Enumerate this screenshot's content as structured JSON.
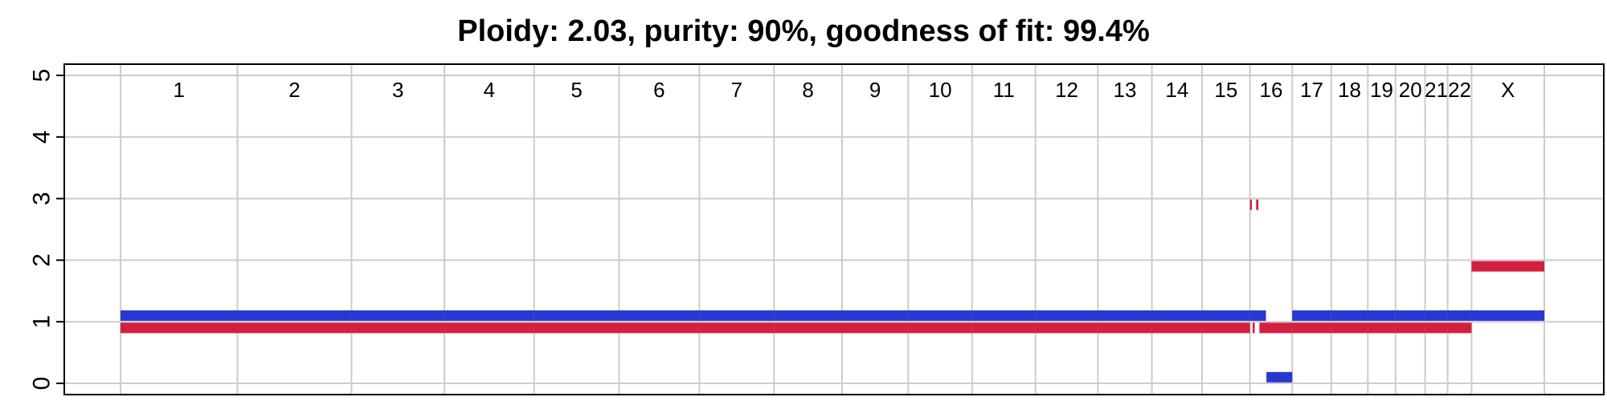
{
  "chart_data": {
    "type": "segments",
    "title": "Ploidy: 2.03, purity: 90%, goodness of fit: 99.4%",
    "xlabel": "",
    "ylabel": "",
    "ylim": [
      0,
      5
    ],
    "y_ticks": [
      "0",
      "1",
      "2",
      "3",
      "4",
      "5"
    ],
    "grid": true,
    "colors": {
      "major_allele": "#2838d0",
      "minor_allele": "#d42040",
      "grid": "#cccccc",
      "axis": "#000000"
    },
    "chromosomes": [
      {
        "name": "1",
        "length": 249
      },
      {
        "name": "2",
        "length": 243
      },
      {
        "name": "3",
        "length": 198
      },
      {
        "name": "4",
        "length": 191
      },
      {
        "name": "5",
        "length": 181
      },
      {
        "name": "6",
        "length": 171
      },
      {
        "name": "7",
        "length": 159
      },
      {
        "name": "8",
        "length": 145
      },
      {
        "name": "9",
        "length": 141
      },
      {
        "name": "10",
        "length": 136
      },
      {
        "name": "11",
        "length": 135
      },
      {
        "name": "12",
        "length": 133
      },
      {
        "name": "13",
        "length": 115
      },
      {
        "name": "14",
        "length": 107
      },
      {
        "name": "15",
        "length": 102
      },
      {
        "name": "16",
        "length": 90
      },
      {
        "name": "17",
        "length": 83
      },
      {
        "name": "18",
        "length": 78
      },
      {
        "name": "19",
        "length": 59
      },
      {
        "name": "20",
        "length": 63
      },
      {
        "name": "21",
        "length": 48
      },
      {
        "name": "22",
        "length": 51
      },
      {
        "name": "X",
        "length": 155
      }
    ],
    "series": [
      {
        "color": "#2838d0",
        "segments": [
          {
            "chrom": "1",
            "start": 0,
            "end": 249,
            "value": 1.1
          },
          {
            "chrom": "2",
            "start": 0,
            "end": 243,
            "value": 1.1
          },
          {
            "chrom": "3",
            "start": 0,
            "end": 198,
            "value": 1.1
          },
          {
            "chrom": "4",
            "start": 0,
            "end": 191,
            "value": 1.1
          },
          {
            "chrom": "5",
            "start": 0,
            "end": 181,
            "value": 1.1
          },
          {
            "chrom": "6",
            "start": 0,
            "end": 171,
            "value": 1.1
          },
          {
            "chrom": "7",
            "start": 0,
            "end": 159,
            "value": 1.1
          },
          {
            "chrom": "8",
            "start": 0,
            "end": 145,
            "value": 1.1
          },
          {
            "chrom": "9",
            "start": 0,
            "end": 141,
            "value": 1.1
          },
          {
            "chrom": "10",
            "start": 0,
            "end": 136,
            "value": 1.1
          },
          {
            "chrom": "11",
            "start": 0,
            "end": 135,
            "value": 1.1
          },
          {
            "chrom": "12",
            "start": 0,
            "end": 133,
            "value": 1.1
          },
          {
            "chrom": "13",
            "start": 0,
            "end": 115,
            "value": 1.1
          },
          {
            "chrom": "14",
            "start": 0,
            "end": 107,
            "value": 1.1
          },
          {
            "chrom": "15",
            "start": 0,
            "end": 102,
            "value": 1.1
          },
          {
            "chrom": "16",
            "start": 0,
            "end": 34,
            "value": 1.1
          },
          {
            "chrom": "16",
            "start": 35,
            "end": 90,
            "value": 0.1
          },
          {
            "chrom": "17",
            "start": 0,
            "end": 83,
            "value": 1.1
          },
          {
            "chrom": "18",
            "start": 0,
            "end": 78,
            "value": 1.1
          },
          {
            "chrom": "19",
            "start": 0,
            "end": 59,
            "value": 1.1
          },
          {
            "chrom": "20",
            "start": 0,
            "end": 63,
            "value": 1.1
          },
          {
            "chrom": "21",
            "start": 0,
            "end": 48,
            "value": 1.1
          },
          {
            "chrom": "22",
            "start": 0,
            "end": 51,
            "value": 1.1
          },
          {
            "chrom": "X",
            "start": 0,
            "end": 155,
            "value": 1.1
          }
        ]
      },
      {
        "color": "#d42040",
        "segments": [
          {
            "chrom": "1",
            "start": 0,
            "end": 249,
            "value": 0.9
          },
          {
            "chrom": "2",
            "start": 0,
            "end": 243,
            "value": 0.9
          },
          {
            "chrom": "3",
            "start": 0,
            "end": 198,
            "value": 0.9
          },
          {
            "chrom": "4",
            "start": 0,
            "end": 191,
            "value": 0.9
          },
          {
            "chrom": "5",
            "start": 0,
            "end": 181,
            "value": 0.9
          },
          {
            "chrom": "6",
            "start": 0,
            "end": 171,
            "value": 0.9
          },
          {
            "chrom": "7",
            "start": 0,
            "end": 159,
            "value": 0.9
          },
          {
            "chrom": "8",
            "start": 0,
            "end": 145,
            "value": 0.9
          },
          {
            "chrom": "9",
            "start": 0,
            "end": 141,
            "value": 0.9
          },
          {
            "chrom": "10",
            "start": 0,
            "end": 136,
            "value": 0.9
          },
          {
            "chrom": "11",
            "start": 0,
            "end": 135,
            "value": 0.9
          },
          {
            "chrom": "12",
            "start": 0,
            "end": 133,
            "value": 0.9
          },
          {
            "chrom": "13",
            "start": 0,
            "end": 115,
            "value": 0.9
          },
          {
            "chrom": "14",
            "start": 0,
            "end": 107,
            "value": 0.9
          },
          {
            "chrom": "15",
            "start": 0,
            "end": 102,
            "value": 0.9
          },
          {
            "chrom": "16",
            "start": 0,
            "end": 4,
            "value": 2.9
          },
          {
            "chrom": "16",
            "start": 5.5,
            "end": 10,
            "value": 0.9
          },
          {
            "chrom": "16",
            "start": 13,
            "end": 18,
            "value": 2.9
          },
          {
            "chrom": "16",
            "start": 20,
            "end": 90,
            "value": 0.9
          },
          {
            "chrom": "17",
            "start": 0,
            "end": 83,
            "value": 0.9
          },
          {
            "chrom": "18",
            "start": 0,
            "end": 78,
            "value": 0.9
          },
          {
            "chrom": "19",
            "start": 0,
            "end": 59,
            "value": 0.9
          },
          {
            "chrom": "20",
            "start": 0,
            "end": 63,
            "value": 0.9
          },
          {
            "chrom": "21",
            "start": 0,
            "end": 48,
            "value": 0.9
          },
          {
            "chrom": "22",
            "start": 0,
            "end": 51,
            "value": 0.9
          },
          {
            "chrom": "X",
            "start": 0,
            "end": 155,
            "value": 1.9
          }
        ]
      }
    ]
  }
}
